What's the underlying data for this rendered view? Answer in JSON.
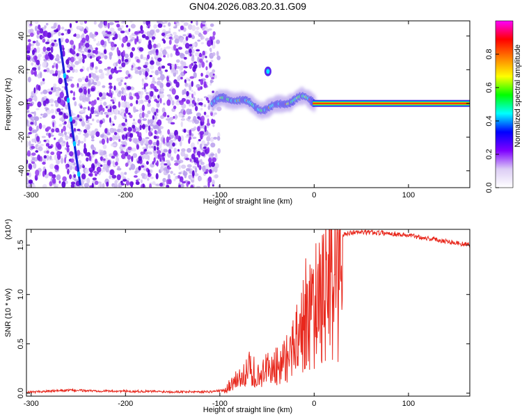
{
  "title": "GN04.2026.083.20.31.G09",
  "chart_data": [
    {
      "type": "heatmap",
      "panel": "spectrogram",
      "xlabel": "Height of straight line (km)",
      "ylabel": "Frequency (Hz)",
      "xlim": [
        -305,
        165
      ],
      "ylim": [
        -50,
        49
      ],
      "xticks": [
        -300,
        -200,
        -100,
        0,
        100
      ],
      "yticks": [
        -40,
        -20,
        0,
        20,
        40
      ],
      "colorbar": {
        "label": "Normalized spectral amplitude",
        "range": [
          0,
          1
        ],
        "ticks": [
          "0.0",
          "0.2",
          "0.4",
          "0.6",
          "0.8"
        ],
        "colormap": [
          "#ffffff",
          "#dccdf5",
          "#7f00ff",
          "#0000ff",
          "#00ffff",
          "#00ff00",
          "#ffff00",
          "#ff8000",
          "#ff0000",
          "#ff00ff"
        ]
      },
      "features": {
        "noise_region_x": [
          -305,
          -105
        ],
        "diagonal_trace": {
          "x": [
            -270,
            -248
          ],
          "y": [
            38,
            -48
          ]
        },
        "noisy_center_trace": {
          "x": [
            -108,
            0
          ],
          "y_range": [
            -6,
            6
          ]
        },
        "side_blob": {
          "x": -49,
          "y": 19
        },
        "stable_line": {
          "x": [
            0,
            165
          ],
          "y": 0
        }
      }
    },
    {
      "type": "line",
      "panel": "snr",
      "xlabel": "Height of straight line (km)",
      "ylabel": "SNR (10 * v/v)",
      "yscale_note": "(x10⁴)",
      "xlim": [
        -305,
        165
      ],
      "ylim": [
        -0.03,
        1.66
      ],
      "xticks": [
        -300,
        -200,
        -100,
        0,
        100
      ],
      "yticks": [
        "0.0",
        "0.5",
        "1.0",
        "1.5"
      ],
      "series": [
        {
          "name": "SNR",
          "color": "#e8271c",
          "x": [
            -305,
            -280,
            -260,
            -240,
            -200,
            -150,
            -110,
            -95,
            -85,
            -70,
            -60,
            -50,
            -40,
            -30,
            -20,
            -10,
            0,
            10,
            20,
            30,
            40,
            60,
            80,
            100,
            120,
            140,
            165
          ],
          "y": [
            0.01,
            0.02,
            0.03,
            0.025,
            0.02,
            0.015,
            0.015,
            0.03,
            0.15,
            0.3,
            0.3,
            0.32,
            0.33,
            0.45,
            0.7,
            0.95,
            1.15,
            1.38,
            1.52,
            1.6,
            1.63,
            1.63,
            1.62,
            1.6,
            1.57,
            1.54,
            1.5
          ]
        }
      ]
    }
  ]
}
